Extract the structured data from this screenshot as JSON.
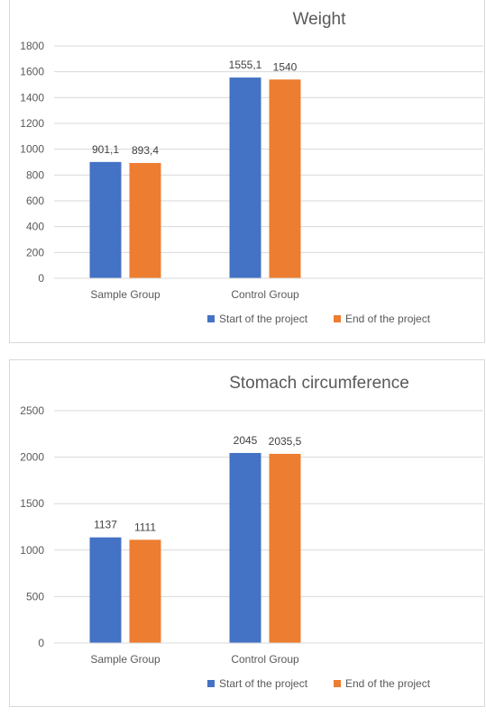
{
  "colors": {
    "start": "#4472c4",
    "end": "#ed7d31"
  },
  "chart_data": [
    {
      "type": "bar",
      "title": "Weight",
      "categories": [
        "Sample Group",
        "Control Group"
      ],
      "series": [
        {
          "name": "Start of the project",
          "values": [
            901.1,
            1555.1
          ],
          "labels": [
            "901,1",
            "1555,1"
          ],
          "color": "#4472c4"
        },
        {
          "name": "End of the project",
          "values": [
            893.4,
            1540
          ],
          "labels": [
            "893,4",
            "1540"
          ],
          "color": "#ed7d31"
        }
      ],
      "ylim": [
        0,
        1800
      ],
      "yticks": [
        "0",
        "200",
        "400",
        "600",
        "800",
        "1000",
        "1200",
        "1400",
        "1600",
        "1800"
      ],
      "grid": true,
      "legend": "bottom"
    },
    {
      "type": "bar",
      "title": "Stomach circumference",
      "categories": [
        "Sample Group",
        "Control Group"
      ],
      "series": [
        {
          "name": "Start of the project",
          "values": [
            1137,
            2045
          ],
          "labels": [
            "1137",
            "2045"
          ],
          "color": "#4472c4"
        },
        {
          "name": "End of the project",
          "values": [
            1111,
            2035.5
          ],
          "labels": [
            "1111",
            "2035,5"
          ],
          "color": "#ed7d31"
        }
      ],
      "ylim": [
        0,
        2500
      ],
      "yticks": [
        "0",
        "500",
        "1000",
        "1500",
        "2000",
        "2500"
      ],
      "grid": true,
      "legend": "bottom"
    }
  ]
}
